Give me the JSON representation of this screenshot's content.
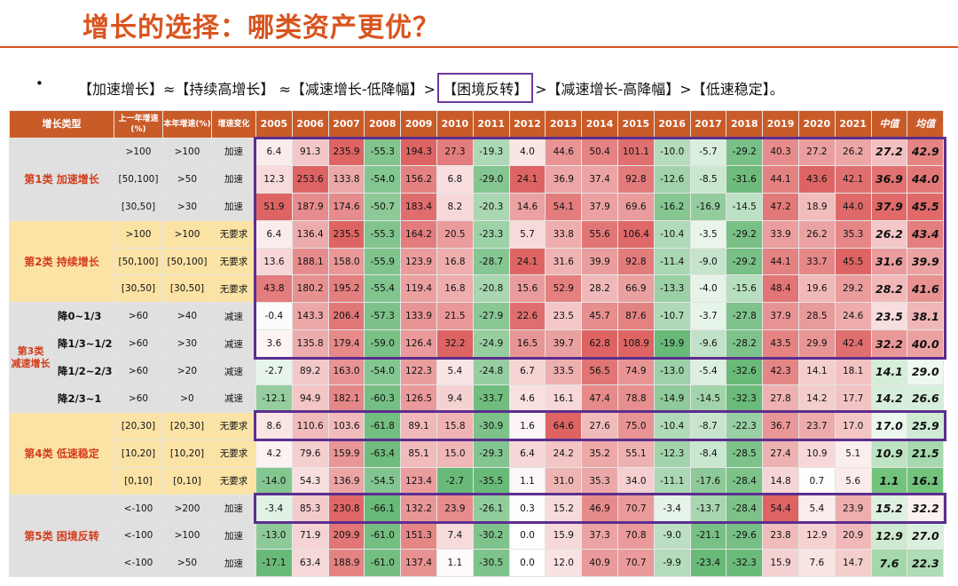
{
  "title": "增长的选择：哪类资产更优？",
  "bullet": "•",
  "subtitle": {
    "part1": "【加速增长】≈【持续高增长】 ≈【减速增长-低降幅】>",
    "boxed": "【困境反转】",
    "part2": ">【减速增长-高降幅】>【低速稳定】。"
  },
  "table": {
    "headers": {
      "type": "增长类型",
      "prev": "上一年增速(%)",
      "curr": "本年增速(%)",
      "change": "增速变化",
      "years": [
        "2005",
        "2006",
        "2007",
        "2008",
        "2009",
        "2010",
        "2011",
        "2012",
        "2013",
        "2014",
        "2015",
        "2016",
        "2017",
        "2018",
        "2019",
        "2020",
        "2021"
      ],
      "median": "中值",
      "mean": "均值"
    },
    "groups": [
      {
        "label": "第1类  加速增长",
        "color": "#e0e0e0",
        "rows": [
          {
            "prev": ">100",
            "curr": ">100",
            "change": "加速",
            "values": [
              6.4,
              91.3,
              235.9,
              -55.3,
              194.3,
              27.3,
              -19.3,
              4.0,
              44.6,
              50.4,
              101.1,
              -10.0,
              -5.7,
              -29.2,
              40.3,
              27.2,
              26.2
            ],
            "median": 27.2,
            "mean": 42.9
          },
          {
            "prev": "[50,100]",
            "curr": ">50",
            "change": "加速",
            "values": [
              12.3,
              253.6,
              133.8,
              -54.0,
              156.2,
              6.8,
              -29.0,
              24.1,
              36.9,
              37.4,
              92.8,
              -12.6,
              -8.5,
              -31.6,
              44.1,
              43.6,
              42.1
            ],
            "median": 36.9,
            "mean": 44.0
          },
          {
            "prev": "[30,50]",
            "curr": ">30",
            "change": "加速",
            "values": [
              51.9,
              187.9,
              174.6,
              -50.7,
              183.4,
              8.2,
              -20.3,
              14.6,
              54.1,
              37.9,
              69.6,
              -16.2,
              -16.9,
              -14.5,
              47.2,
              18.9,
              44.0
            ],
            "median": 37.9,
            "mean": 45.5
          }
        ]
      },
      {
        "label": "第2类  持续增长",
        "color": "#fbe3a6",
        "rows": [
          {
            "prev": ">100",
            "curr": ">100",
            "change": "无要求",
            "values": [
              6.4,
              136.4,
              235.5,
              -55.3,
              164.2,
              20.5,
              -23.3,
              5.7,
              33.8,
              55.6,
              106.4,
              -10.4,
              -3.5,
              -29.2,
              33.9,
              26.2,
              35.3
            ],
            "median": 26.2,
            "mean": 43.4
          },
          {
            "prev": "[50,100]",
            "curr": "[50,100]",
            "change": "无要求",
            "values": [
              13.6,
              188.1,
              158.0,
              -55.9,
              123.9,
              16.8,
              -28.7,
              24.1,
              31.6,
              39.9,
              92.8,
              -11.4,
              -9.0,
              -29.2,
              44.1,
              33.7,
              45.5
            ],
            "median": 31.6,
            "mean": 39.9
          },
          {
            "prev": "[30,50]",
            "curr": "[30,50]",
            "change": "无要求",
            "values": [
              43.8,
              180.2,
              195.2,
              -55.4,
              119.4,
              16.8,
              -20.8,
              15.6,
              52.9,
              28.2,
              66.9,
              -13.3,
              -4.0,
              -15.6,
              48.4,
              19.6,
              29.2
            ],
            "median": 28.2,
            "mean": 41.6
          }
        ]
      },
      {
        "label": "第3类\n减速增长",
        "color": "#e0e0e0",
        "rows": [
          {
            "sub": "降0~1/3",
            "prev": ">60",
            "curr": ">40",
            "change": "减速",
            "values": [
              -0.4,
              143.3,
              206.4,
              -57.3,
              133.9,
              21.5,
              -27.9,
              22.6,
              23.5,
              45.7,
              87.6,
              -10.7,
              -3.7,
              -27.8,
              37.9,
              28.5,
              24.6
            ],
            "median": 23.5,
            "mean": 38.1
          },
          {
            "sub": "降1/3~1/2",
            "prev": ">60",
            "curr": ">30",
            "change": "减速",
            "values": [
              3.6,
              135.8,
              179.4,
              -59.0,
              126.4,
              32.2,
              -24.9,
              16.5,
              39.7,
              62.8,
              108.9,
              -19.9,
              -9.6,
              -28.2,
              43.5,
              29.9,
              42.4
            ],
            "median": 32.2,
            "mean": 40.0
          },
          {
            "sub": "降1/2~2/3",
            "prev": ">60",
            "curr": ">20",
            "change": "减速",
            "values": [
              -2.7,
              89.2,
              163.0,
              -54.0,
              122.3,
              5.4,
              -24.8,
              6.7,
              33.5,
              56.5,
              74.9,
              -13.0,
              -5.4,
              -32.6,
              42.3,
              14.1,
              18.1
            ],
            "median": 14.1,
            "mean": 29.0
          },
          {
            "sub": "降2/3~1",
            "prev": ">60",
            "curr": ">0",
            "change": "减速",
            "values": [
              -12.1,
              94.9,
              182.1,
              -60.3,
              126.5,
              9.4,
              -33.7,
              4.6,
              16.1,
              47.4,
              78.8,
              -14.9,
              -14.5,
              -32.3,
              27.8,
              14.2,
              17.7
            ],
            "median": 14.2,
            "mean": 26.6
          }
        ]
      },
      {
        "label": "第4类  低速稳定",
        "color": "#fbe3a6",
        "rows": [
          {
            "prev": "[20,30]",
            "curr": "[20,30]",
            "change": "无要求",
            "values": [
              8.6,
              110.6,
              103.6,
              -61.8,
              89.1,
              15.8,
              -30.9,
              1.6,
              64.6,
              27.6,
              75.0,
              -10.4,
              -8.7,
              -22.3,
              36.7,
              23.7,
              17.0
            ],
            "median": 17.0,
            "mean": 25.9
          },
          {
            "prev": "[10,20]",
            "curr": "[10,20]",
            "change": "无要求",
            "values": [
              4.2,
              79.6,
              159.9,
              -63.4,
              85.1,
              15.0,
              -29.3,
              6.4,
              24.2,
              35.2,
              55.1,
              -12.3,
              -8.4,
              -28.5,
              27.4,
              10.9,
              5.1
            ],
            "median": 10.9,
            "mean": 21.5
          },
          {
            "prev": "[0,10]",
            "curr": "[0,10]",
            "change": "无要求",
            "values": [
              -14.0,
              54.3,
              136.9,
              -54.5,
              123.4,
              -2.7,
              -35.5,
              1.1,
              31.0,
              35.3,
              34.0,
              -11.1,
              -17.6,
              -28.4,
              14.8,
              0.7,
              5.6
            ],
            "median": 1.1,
            "mean": 16.1
          }
        ]
      },
      {
        "label": "第5类  困境反转",
        "color": "#e0e0e0",
        "rows": [
          {
            "prev": "<-100",
            "curr": ">200",
            "change": "加速",
            "values": [
              -3.4,
              85.3,
              230.8,
              -66.1,
              132.2,
              23.9,
              -26.1,
              0.3,
              15.2,
              46.9,
              70.7,
              -3.4,
              -13.7,
              -28.4,
              54.4,
              5.4,
              23.9
            ],
            "median": 15.2,
            "mean": 32.2
          },
          {
            "prev": "<-100",
            "curr": ">100",
            "change": "加速",
            "values": [
              -13.0,
              71.9,
              209.9,
              -61.0,
              151.3,
              7.4,
              -30.2,
              0.0,
              15.9,
              37.3,
              70.8,
              -9.0,
              -21.1,
              -29.6,
              23.8,
              12.9,
              20.9
            ],
            "median": 12.9,
            "mean": 27.0
          },
          {
            "prev": "<-100",
            "curr": ">50",
            "change": "加速",
            "values": [
              -17.1,
              63.4,
              188.9,
              -61.0,
              137.4,
              1.1,
              -30.5,
              0.0,
              12.0,
              40.9,
              70.7,
              -9.9,
              -23.4,
              -32.3,
              15.9,
              7.6,
              14.7
            ],
            "median": 7.6,
            "mean": 22.3
          }
        ]
      }
    ]
  }
}
